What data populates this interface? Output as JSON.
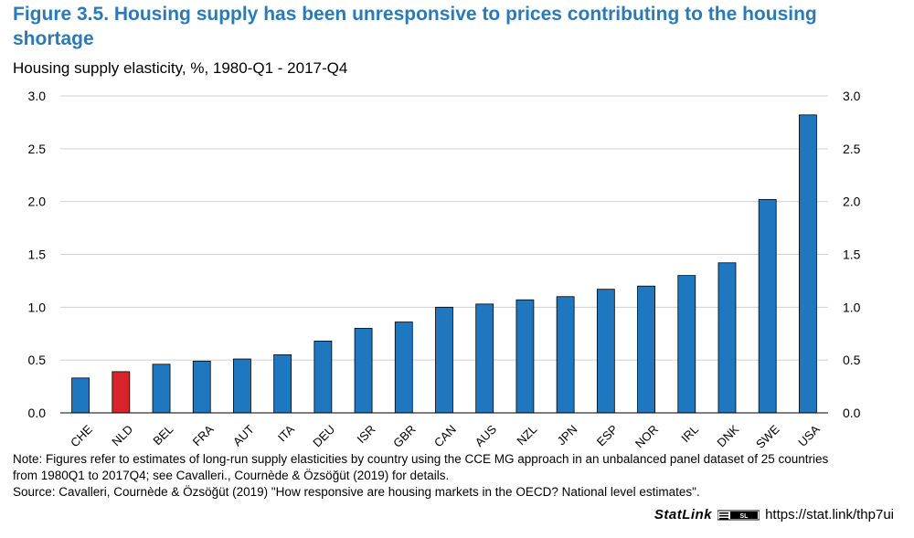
{
  "figure": {
    "title": "Figure 3.5. Housing supply has been unresponsive to prices contributing to the housing shortage",
    "subtitle": "Housing supply elasticity, %, 1980-Q1 - 2017-Q4"
  },
  "chart_data": {
    "type": "bar",
    "categories": [
      "CHE",
      "NLD",
      "BEL",
      "FRA",
      "AUT",
      "ITA",
      "DEU",
      "ISR",
      "GBR",
      "CAN",
      "AUS",
      "NZL",
      "JPN",
      "ESP",
      "NOR",
      "IRL",
      "DNK",
      "SWE",
      "USA"
    ],
    "values": [
      0.33,
      0.39,
      0.46,
      0.49,
      0.51,
      0.55,
      0.68,
      0.8,
      0.86,
      1.0,
      1.03,
      1.07,
      1.1,
      1.17,
      1.2,
      1.3,
      1.42,
      2.02,
      2.82
    ],
    "highlight": "NLD",
    "colors": {
      "bar": "#1f77c0",
      "highlight": "#d9232a",
      "grid": "#d0d0d0",
      "axis": "#000000"
    },
    "ylim": [
      0,
      3
    ],
    "yticks": [
      "0.0",
      "0.5",
      "1.0",
      "1.5",
      "2.0",
      "2.5",
      "3.0"
    ],
    "xlabel": "",
    "ylabel": ""
  },
  "notes": {
    "note_line1": "Note: Figures refer to estimates of long-run supply elasticities by country using the CCE MG approach in an unbalanced panel dataset of 25 countries",
    "note_line2": "from 1980Q1 to 2017Q4; see Cavalleri., Cournède & Özsöğüt (2019) for details.",
    "source": "Source: Cavalleri, Cournède & Özsöğüt (2019) \"How responsive are housing markets in the OECD? National level estimates\"."
  },
  "statlink": {
    "brand": "StatLink",
    "url": "https://stat.link/thp7ui"
  }
}
